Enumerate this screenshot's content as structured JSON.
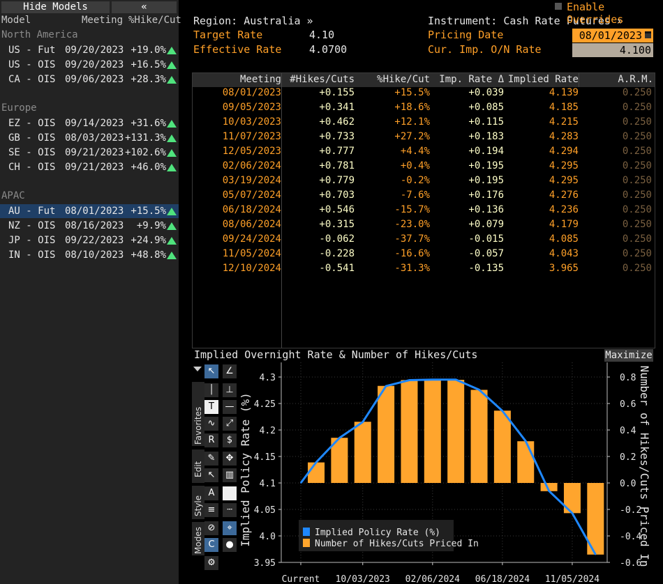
{
  "left_panel": {
    "hide_label": "Hide Models",
    "collapse_label": "«",
    "headers": {
      "model": "Model",
      "meeting": "Meeting",
      "hike": "%Hike/Cut"
    },
    "groups": [
      {
        "name": "North America",
        "rows": [
          {
            "model": "US - Fut",
            "meeting": "09/20/2023",
            "hike": "+19.0%"
          },
          {
            "model": "US - OIS",
            "meeting": "09/20/2023",
            "hike": "+16.5%"
          },
          {
            "model": "CA - OIS",
            "meeting": "09/06/2023",
            "hike": "+28.3%"
          }
        ]
      },
      {
        "name": "Europe",
        "rows": [
          {
            "model": "EZ - OIS",
            "meeting": "09/14/2023",
            "hike": "+31.6%"
          },
          {
            "model": "GB - OIS",
            "meeting": "08/03/2023",
            "hike": "+131.3%"
          },
          {
            "model": "SE - OIS",
            "meeting": "09/21/2023",
            "hike": "+102.6%"
          },
          {
            "model": "CH - OIS",
            "meeting": "09/21/2023",
            "hike": "+46.0%"
          }
        ]
      },
      {
        "name": "APAC",
        "rows": [
          {
            "model": "AU - Fut",
            "meeting": "08/01/2023",
            "hike": "+15.5%",
            "selected": true
          },
          {
            "model": "NZ - OIS",
            "meeting": "08/16/2023",
            "hike": "+9.9%"
          },
          {
            "model": "JP - OIS",
            "meeting": "09/22/2023",
            "hike": "+24.9%"
          },
          {
            "model": "IN - OIS",
            "meeting": "08/10/2023",
            "hike": "+48.8%"
          }
        ]
      }
    ]
  },
  "header": {
    "region": "Region: Australia »",
    "instrument": "Instrument: Cash Rate Futures »",
    "enable_overrides": "Enable Overrides",
    "target_rate_label": "Target Rate",
    "target_rate_value": "4.10",
    "effective_rate_label": "Effective Rate",
    "effective_rate_value": "4.0700",
    "pricing_date_label": "Pricing Date",
    "pricing_date_value": "08/01/2023",
    "cur_imp_label": "Cur. Imp. O/N Rate",
    "cur_imp_value": "4.100"
  },
  "table": {
    "columns": [
      "Meeting",
      "#Hikes/Cuts",
      "%Hike/Cut",
      "Imp. Rate Δ",
      "Implied Rate",
      "A.R.M."
    ],
    "rows": [
      [
        "08/01/2023",
        "+0.155",
        "+15.5%",
        "+0.039",
        "4.139",
        "0.250"
      ],
      [
        "09/05/2023",
        "+0.341",
        "+18.6%",
        "+0.085",
        "4.185",
        "0.250"
      ],
      [
        "10/03/2023",
        "+0.462",
        "+12.1%",
        "+0.115",
        "4.215",
        "0.250"
      ],
      [
        "11/07/2023",
        "+0.733",
        "+27.2%",
        "+0.183",
        "4.283",
        "0.250"
      ],
      [
        "12/05/2023",
        "+0.777",
        "+4.4%",
        "+0.194",
        "4.294",
        "0.250"
      ],
      [
        "02/06/2024",
        "+0.781",
        "+0.4%",
        "+0.195",
        "4.295",
        "0.250"
      ],
      [
        "03/19/2024",
        "+0.779",
        "-0.2%",
        "+0.195",
        "4.295",
        "0.250"
      ],
      [
        "05/07/2024",
        "+0.703",
        "-7.6%",
        "+0.176",
        "4.276",
        "0.250"
      ],
      [
        "06/18/2024",
        "+0.546",
        "-15.7%",
        "+0.136",
        "4.236",
        "0.250"
      ],
      [
        "08/06/2024",
        "+0.315",
        "-23.0%",
        "+0.079",
        "4.179",
        "0.250"
      ],
      [
        "09/24/2024",
        "-0.062",
        "-37.7%",
        "-0.015",
        "4.085",
        "0.250"
      ],
      [
        "11/05/2024",
        "-0.228",
        "-16.6%",
        "-0.057",
        "4.043",
        "0.250"
      ],
      [
        "12/10/2024",
        "-0.541",
        "-31.3%",
        "-0.135",
        "3.965",
        "0.250"
      ]
    ]
  },
  "chart_panel": {
    "title": "Implied Overnight Rate & Number of Hikes/Cuts",
    "maximize_label": "Maximize",
    "tabs": [
      "Favorites",
      "Edit",
      "Style",
      "Modes"
    ]
  },
  "chart_data": {
    "type": "bar",
    "title": "Implied Overnight Rate & Number of Hikes/Cuts",
    "categories": [
      "Current",
      "08/01/2023",
      "09/05/2023",
      "10/03/2023",
      "11/07/2023",
      "12/05/2023",
      "02/06/2024",
      "03/19/2024",
      "05/07/2024",
      "06/18/2024",
      "08/06/2024",
      "09/24/2024",
      "11/05/2024",
      "12/10/2024"
    ],
    "x_tick_labels": [
      "Current",
      "10/03/2023",
      "02/06/2024",
      "06/18/2024",
      "11/05/2024"
    ],
    "series": [
      {
        "name": "Implied Policy Rate (%)",
        "type": "line",
        "axis": "left",
        "color": "#1f88ff",
        "values": [
          4.1,
          4.139,
          4.185,
          4.215,
          4.283,
          4.294,
          4.295,
          4.295,
          4.276,
          4.236,
          4.179,
          4.085,
          4.043,
          3.965
        ]
      },
      {
        "name": "Number of Hikes/Cuts Priced In",
        "type": "bar",
        "axis": "right",
        "color": "#ffa52d",
        "values": [
          null,
          0.155,
          0.341,
          0.462,
          0.733,
          0.777,
          0.781,
          0.779,
          0.703,
          0.546,
          0.315,
          -0.062,
          -0.228,
          -0.541
        ]
      }
    ],
    "ylabel": "Implied Policy Rate (%)",
    "y2label": "Number of Hikes/Cuts Priced In",
    "ylim": [
      3.95,
      4.3
    ],
    "yticks": [
      "4.3",
      "4.25",
      "4.2",
      "4.15",
      "4.1",
      "4.05",
      "4.0",
      "3.95"
    ],
    "y2lim": [
      -0.6,
      0.8
    ],
    "y2ticks": [
      "0.8",
      "0.6",
      "0.4",
      "0.2",
      "0.0",
      "-0.2",
      "-0.4",
      "-0.6"
    ],
    "grid": true,
    "legend": "bottom-left"
  }
}
